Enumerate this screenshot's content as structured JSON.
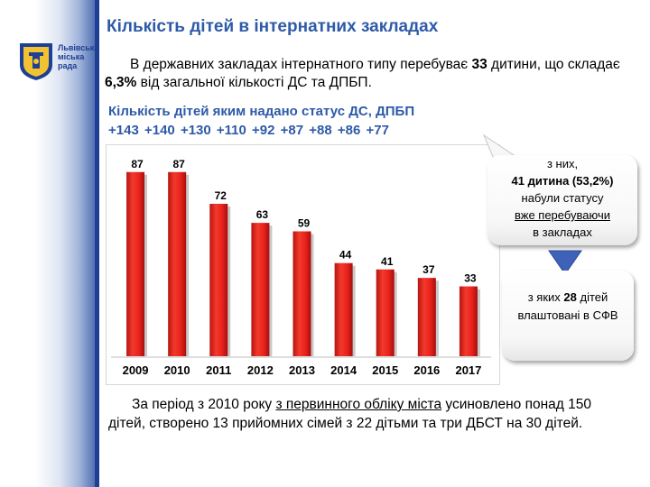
{
  "header": {
    "logo_lines": [
      "Львівська",
      "міська",
      "рада"
    ],
    "title": "Кількість дітей в інтернатних закладах"
  },
  "intro": {
    "before": "В державних закладах інтернатного типу перебуває ",
    "count": "33",
    "middle": " дитини, що складає ",
    "percent": "6,3%",
    "after": " від загальної кількості ДС та ДПБП."
  },
  "subtitle": "Кількість дітей яким надано статус ДС, ДПБП",
  "increments": [
    "+143",
    "+140",
    "+130",
    "+110",
    "+92",
    "+87",
    "+88",
    "+86",
    "+77"
  ],
  "callout1": {
    "line1": "з них,",
    "line2": "41 дитина (53,2%)",
    "line3": "набули статусу",
    "line4": "вже перебуваючи",
    "line5": "в закладах"
  },
  "callout2": {
    "before": "з яких ",
    "number": "28",
    "after": " дітей влаштовані в СФВ"
  },
  "footer": {
    "before": "За період з 2010 року ",
    "underlined": "з первинного обліку міста",
    "after": "  усиновлено понад 150 дітей, створено 13 прийомних сімей з 22 дітьми та три ДБСТ на 30 дітей."
  },
  "colors": {
    "title_blue": "#2e5aa8",
    "bar_red": "#e8211c",
    "sidebar_blue": "#1d3f94",
    "arrow_blue": "#3d62b8"
  },
  "chart_data": {
    "type": "bar",
    "categories": [
      "2009",
      "2010",
      "2011",
      "2012",
      "2013",
      "2014",
      "2015",
      "2016",
      "2017"
    ],
    "values": [
      87,
      87,
      72,
      63,
      59,
      44,
      41,
      37,
      33
    ],
    "title": "",
    "xlabel": "",
    "ylabel": "",
    "ylim": [
      0,
      95
    ],
    "grid": false,
    "data_labels": true
  }
}
